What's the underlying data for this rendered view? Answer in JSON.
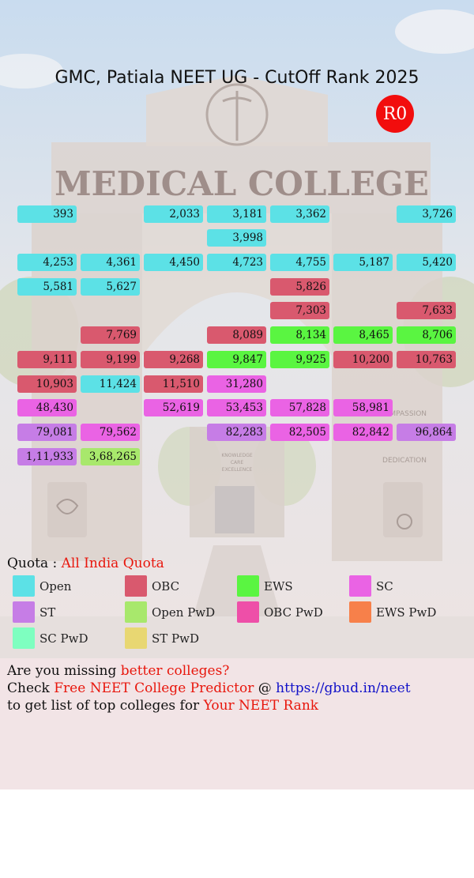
{
  "title": "GMC, Patiala NEET UG - CutOff Rank 2025",
  "round": "R0",
  "background": {
    "college_sign": "MEDICAL COLLEGE",
    "pillar_left_text": "",
    "pillar_right_text_1": "COMPASSION",
    "pillar_right_text_2": "DEDICATION",
    "door_sign_1": "KNOWLEDGE",
    "door_sign_2": "CARE",
    "door_sign_3": "EXCELLENCE"
  },
  "colors": {
    "Open": "#5ce1e6",
    "OBC": "#d9596e",
    "EWS": "#5af541",
    "SC": "#ea63e4",
    "ST": "#c67de6",
    "Open PwD": "#a8e86c",
    "OBC PwD": "#ee4fa8",
    "EWS PwD": "#f7804a",
    "SC PwD": "#7effc0",
    "ST PwD": "#e8d772"
  },
  "ranks": [
    {
      "value": "393",
      "category": "Open"
    },
    {
      "value": "2,033",
      "category": "Open"
    },
    {
      "value": "3,181",
      "category": "Open"
    },
    {
      "value": "3,362",
      "category": "Open"
    },
    {
      "value": "3,726",
      "category": "Open"
    },
    {
      "value": "3,998",
      "category": "Open"
    },
    {
      "value": "4,253",
      "category": "Open"
    },
    {
      "value": "4,361",
      "category": "Open"
    },
    {
      "value": "4,450",
      "category": "Open"
    },
    {
      "value": "4,723",
      "category": "Open"
    },
    {
      "value": "4,755",
      "category": "Open"
    },
    {
      "value": "5,187",
      "category": "Open"
    },
    {
      "value": "5,420",
      "category": "Open"
    },
    {
      "value": "5,581",
      "category": "Open"
    },
    {
      "value": "5,627",
      "category": "Open"
    },
    {
      "value": "5,826",
      "category": "OBC"
    },
    {
      "value": "7,303",
      "category": "OBC"
    },
    {
      "value": "7,633",
      "category": "OBC"
    },
    {
      "value": "7,769",
      "category": "OBC"
    },
    {
      "value": "8,089",
      "category": "OBC"
    },
    {
      "value": "8,134",
      "category": "EWS"
    },
    {
      "value": "8,465",
      "category": "EWS"
    },
    {
      "value": "8,706",
      "category": "EWS"
    },
    {
      "value": "9,111",
      "category": "OBC"
    },
    {
      "value": "9,199",
      "category": "OBC"
    },
    {
      "value": "9,268",
      "category": "OBC"
    },
    {
      "value": "9,847",
      "category": "EWS"
    },
    {
      "value": "9,925",
      "category": "EWS"
    },
    {
      "value": "10,200",
      "category": "OBC"
    },
    {
      "value": "10,763",
      "category": "OBC"
    },
    {
      "value": "10,903",
      "category": "OBC"
    },
    {
      "value": "11,424",
      "category": "Open"
    },
    {
      "value": "11,510",
      "category": "OBC"
    },
    {
      "value": "31,280",
      "category": "SC"
    },
    {
      "value": "48,430",
      "category": "SC"
    },
    {
      "value": "52,619",
      "category": "SC"
    },
    {
      "value": "53,453",
      "category": "SC"
    },
    {
      "value": "57,828",
      "category": "SC"
    },
    {
      "value": "58,981",
      "category": "SC"
    },
    {
      "value": "79,081",
      "category": "ST"
    },
    {
      "value": "79,562",
      "category": "SC"
    },
    {
      "value": "82,283",
      "category": "ST"
    },
    {
      "value": "82,505",
      "category": "SC"
    },
    {
      "value": "82,842",
      "category": "SC"
    },
    {
      "value": "96,864",
      "category": "ST"
    },
    {
      "value": "1,11,933",
      "category": "ST"
    },
    {
      "value": "3,68,265",
      "category": "Open PwD"
    }
  ],
  "quota": {
    "label": "Quota : ",
    "value": "All India Quota"
  },
  "legend": [
    "Open",
    "OBC",
    "EWS",
    "SC",
    "ST",
    "Open PwD",
    "OBC PwD",
    "EWS PwD",
    "SC PwD",
    "ST PwD"
  ],
  "footer": {
    "line1_a": "Are you missing ",
    "line1_b": "better colleges?",
    "line2_a": "Check ",
    "line2_b": "Free NEET College Predictor",
    "line2_c": " @ ",
    "line2_d": "https://gbud.in/neet",
    "line3_a": "to get list of top colleges for ",
    "line3_b": "Your NEET Rank"
  }
}
